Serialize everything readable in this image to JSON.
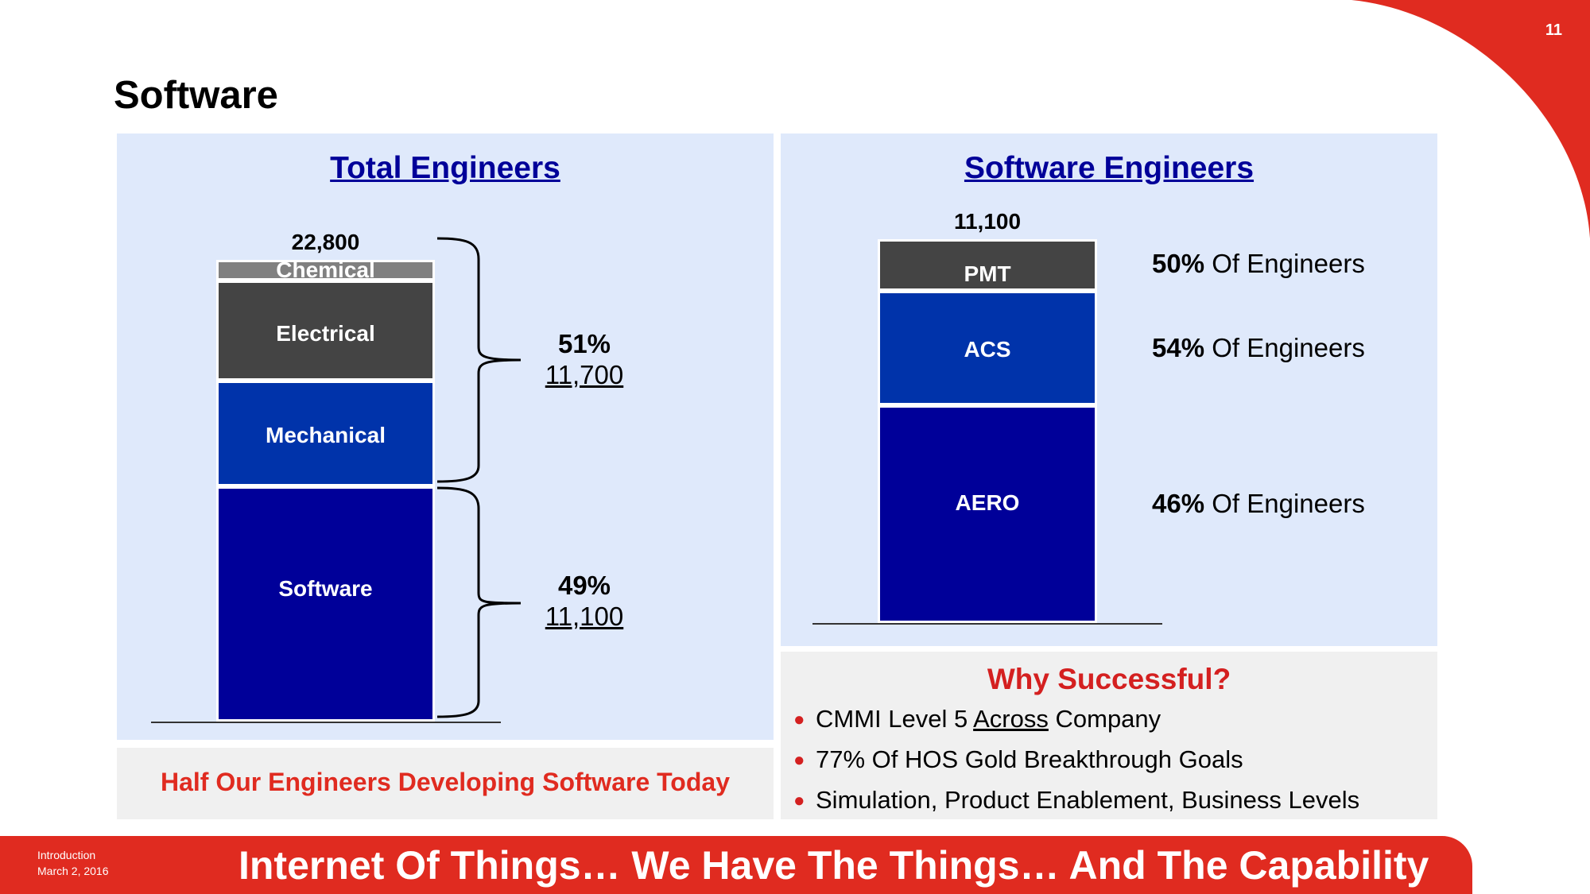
{
  "page": {
    "number": "11",
    "title": "Software",
    "accent_red": "#e02b20",
    "navy": "#000099"
  },
  "left_panel": {
    "heading": "Total Engineers",
    "brace_groups": [
      {
        "pct": "51%",
        "count": "11,700"
      },
      {
        "pct": "49%",
        "count": "11,100"
      }
    ],
    "note": "Half Our Engineers Developing Software Today"
  },
  "right_panel": {
    "heading": "Software Engineers",
    "share_notes": [
      {
        "pct": "50%",
        "text": "Of Engineers"
      },
      {
        "pct": "54%",
        "text": "Of Engineers"
      },
      {
        "pct": "46%",
        "text": "Of Engineers"
      }
    ]
  },
  "why": {
    "title": "Why Successful?",
    "bullets": [
      {
        "pre": "CMMI Level 5 ",
        "underlined": "Across",
        "post": " Company"
      },
      {
        "pre": "77% Of HOS Gold Breakthrough Goals",
        "underlined": "",
        "post": ""
      },
      {
        "pre": "Simulation, Product Enablement, Business Levels",
        "underlined": "",
        "post": ""
      }
    ]
  },
  "footer": {
    "section": "Introduction",
    "date": "March 2, 2016",
    "tagline": "Internet Of Things… We Have The Things… And The Capability"
  },
  "chart_data": [
    {
      "type": "bar",
      "stacked": true,
      "total_label": "22,800",
      "total": 22800,
      "categories": [
        "Total Engineers"
      ],
      "series": [
        {
          "name": "Software",
          "values": [
            11100
          ],
          "color": "#000099"
        },
        {
          "name": "Mechanical",
          "values": [
            5000
          ],
          "color": "#0033aa"
        },
        {
          "name": "Electrical",
          "values": [
            4700
          ],
          "color": "#444444"
        },
        {
          "name": "Chemical",
          "values": [
            1000
          ],
          "color": "#808080"
        }
      ]
    },
    {
      "type": "bar",
      "stacked": true,
      "total_label": "11,100",
      "total": 11100,
      "categories": [
        "Software Engineers"
      ],
      "series": [
        {
          "name": "AERO",
          "values": [
            6300
          ],
          "color": "#000099"
        },
        {
          "name": "ACS",
          "values": [
            3300
          ],
          "color": "#0033aa"
        },
        {
          "name": "PMT",
          "values": [
            1500
          ],
          "color": "#444444"
        }
      ]
    }
  ]
}
